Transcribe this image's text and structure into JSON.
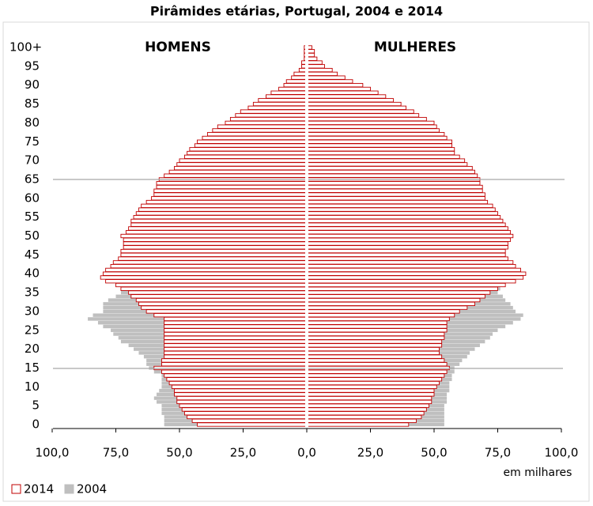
{
  "chart_data": {
    "type": "pyramid",
    "title": "Pirâmides etárias, Portugal, 2004 e 2014",
    "left_label": "HOMENS",
    "right_label": "MULHERES",
    "x_label": "em milhares",
    "xlim": [
      -100,
      100
    ],
    "xticks": [
      {
        "value": -100,
        "label": "100,0"
      },
      {
        "value": -75,
        "label": "75,0"
      },
      {
        "value": -50,
        "label": "50,0"
      },
      {
        "value": -25,
        "label": "25,0"
      },
      {
        "value": 0,
        "label": "0,0"
      },
      {
        "value": 25,
        "label": "25,0"
      },
      {
        "value": 50,
        "label": "50,0"
      },
      {
        "value": 75,
        "label": "75,0"
      },
      {
        "value": 100,
        "label": "100,0"
      }
    ],
    "categories": [
      0,
      null,
      null,
      null,
      null,
      5,
      null,
      null,
      null,
      null,
      10,
      null,
      null,
      null,
      null,
      15,
      null,
      null,
      null,
      null,
      20,
      null,
      null,
      null,
      null,
      25,
      null,
      null,
      null,
      null,
      30,
      null,
      null,
      null,
      null,
      35,
      null,
      null,
      null,
      null,
      40,
      null,
      null,
      null,
      null,
      45,
      null,
      null,
      null,
      null,
      50,
      null,
      null,
      null,
      null,
      55,
      null,
      null,
      null,
      null,
      60,
      null,
      null,
      null,
      null,
      65,
      null,
      null,
      null,
      null,
      70,
      null,
      null,
      null,
      null,
      75,
      null,
      null,
      null,
      null,
      80,
      null,
      null,
      null,
      null,
      85,
      null,
      null,
      null,
      null,
      90,
      null,
      null,
      null,
      null,
      95,
      null,
      null,
      null,
      null,
      "100+"
    ],
    "series": [
      {
        "name": "2004",
        "color": "#bfbfbf",
        "fill": "#bfbfbf",
        "men": [
          56,
          56,
          56,
          57,
          57,
          57,
          59,
          60,
          59,
          58,
          57,
          57,
          57,
          57,
          60,
          62,
          63,
          63,
          64,
          66,
          68,
          70,
          73,
          74,
          76,
          77,
          80,
          82,
          86,
          84,
          80,
          80,
          80,
          78,
          75,
          73,
          73,
          72,
          72,
          72,
          73,
          72,
          72,
          71,
          71,
          70,
          69,
          69,
          68,
          67,
          67,
          66,
          65,
          64,
          64,
          63,
          62,
          61,
          60,
          58,
          56,
          54,
          52,
          51,
          51,
          50,
          49,
          48,
          47,
          46,
          45,
          42,
          40,
          39,
          38,
          37,
          35,
          32,
          30,
          28,
          26,
          23,
          21,
          19,
          16,
          14,
          12,
          10,
          8,
          6,
          5,
          4,
          3,
          2,
          1.5,
          1,
          0.8,
          0.6,
          0.5,
          0.4,
          0.3
        ],
        "women": [
          54,
          54,
          54,
          54,
          54,
          54,
          55,
          55,
          55,
          56,
          56,
          56,
          57,
          57,
          58,
          58,
          60,
          61,
          63,
          64,
          66,
          68,
          70,
          72,
          73,
          75,
          78,
          81,
          84,
          85,
          82,
          81,
          80,
          78,
          77,
          75,
          76,
          76,
          77,
          78,
          78,
          78,
          77,
          76,
          76,
          75,
          74,
          74,
          73,
          72,
          72,
          71,
          70,
          69,
          69,
          68,
          68,
          67,
          67,
          65,
          64,
          62,
          61,
          61,
          60,
          60,
          59,
          59,
          58,
          57,
          56,
          54,
          52,
          51,
          51,
          50,
          48,
          47,
          45,
          42,
          40,
          36,
          33,
          31,
          29,
          27,
          24,
          21,
          18,
          15,
          13,
          10,
          8,
          6,
          4,
          3,
          2,
          2,
          1,
          1,
          1
        ]
      },
      {
        "name": "2014",
        "color": "#c00000",
        "fill": "#ffffff",
        "men": [
          43,
          45,
          47,
          48,
          49,
          50,
          51,
          51,
          52,
          52,
          53,
          54,
          55,
          56,
          57,
          60,
          57,
          57,
          56,
          56,
          56,
          56,
          56,
          56,
          56,
          56,
          56,
          56,
          56,
          60,
          63,
          65,
          66,
          67,
          69,
          70,
          73,
          75,
          79,
          81,
          80,
          79,
          77,
          76,
          74,
          73,
          73,
          72,
          72,
          72,
          73,
          71,
          70,
          69,
          69,
          68,
          67,
          66,
          65,
          63,
          61,
          60,
          60,
          59,
          59,
          58,
          56,
          54,
          52,
          51,
          50,
          48,
          47,
          46,
          44,
          43,
          41,
          39,
          37,
          35,
          32,
          30,
          28,
          26,
          23,
          21,
          19,
          16,
          14,
          11,
          9,
          8,
          6,
          5,
          3,
          2,
          2,
          1,
          1,
          1,
          1
        ],
        "women": [
          40,
          43,
          45,
          46,
          47,
          48,
          49,
          49,
          50,
          50,
          51,
          52,
          53,
          54,
          55,
          56,
          55,
          54,
          53,
          52,
          52,
          53,
          53,
          54,
          54,
          55,
          55,
          55,
          56,
          58,
          60,
          63,
          66,
          68,
          70,
          72,
          75,
          78,
          82,
          85,
          86,
          84,
          82,
          81,
          79,
          78,
          78,
          79,
          79,
          80,
          81,
          80,
          79,
          78,
          77,
          76,
          75,
          74,
          73,
          71,
          70,
          70,
          69,
          69,
          68,
          68,
          67,
          66,
          65,
          63,
          62,
          60,
          58,
          58,
          57,
          57,
          55,
          54,
          52,
          51,
          50,
          47,
          44,
          42,
          39,
          37,
          34,
          31,
          28,
          25,
          22,
          18,
          15,
          12,
          10,
          7,
          6,
          4,
          3,
          3,
          2
        ]
      }
    ]
  }
}
